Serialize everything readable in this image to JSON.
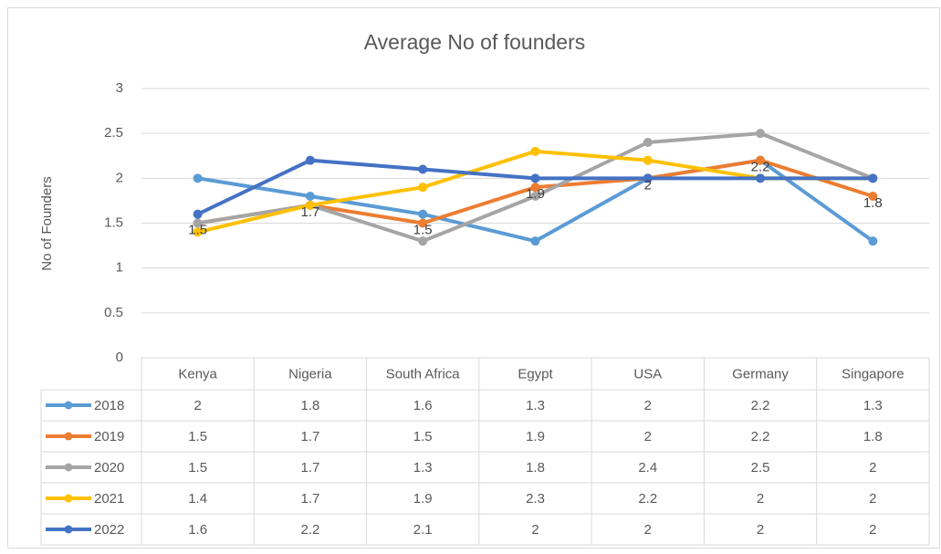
{
  "chart_data": {
    "type": "line",
    "title": "Average No of founders",
    "y_label": "No of Founders",
    "categories": [
      "Kenya",
      "Nigeria",
      "South Africa",
      "Egypt",
      "USA",
      "Germany",
      "Singapore"
    ],
    "series": [
      {
        "name": "2018",
        "color": "#5b9bd5",
        "values": [
          2,
          1.8,
          1.6,
          1.3,
          2,
          2.2,
          1.3
        ]
      },
      {
        "name": "2019",
        "color": "#ed7d31",
        "values": [
          1.5,
          1.7,
          1.5,
          1.9,
          2,
          2.2,
          1.8
        ],
        "data_labels": true
      },
      {
        "name": "2020",
        "color": "#a5a5a5",
        "values": [
          1.5,
          1.7,
          1.3,
          1.8,
          2.4,
          2.5,
          2
        ]
      },
      {
        "name": "2021",
        "color": "#ffc000",
        "values": [
          1.4,
          1.7,
          1.9,
          2.3,
          2.2,
          2,
          2
        ]
      },
      {
        "name": "2022",
        "color": "#4472c4",
        "values": [
          1.6,
          2.2,
          2.1,
          2,
          2,
          2,
          2
        ]
      }
    ],
    "ylim": [
      0,
      3
    ],
    "yticks": [
      0,
      0.5,
      1,
      1.5,
      2,
      2.5,
      3
    ],
    "grid": true,
    "data_table": true
  }
}
